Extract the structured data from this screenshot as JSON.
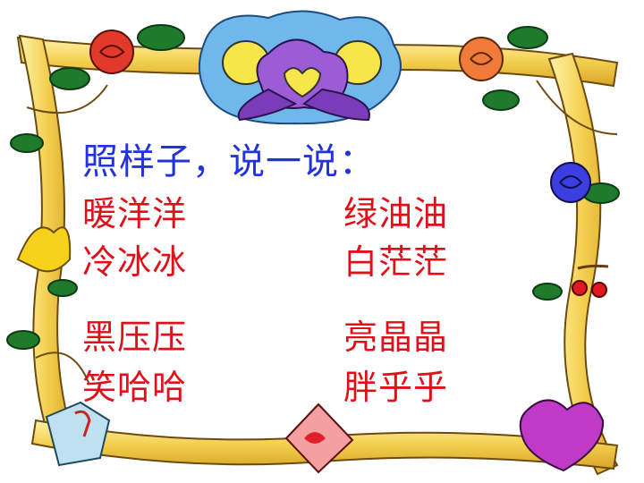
{
  "title": "照样子，说一说：",
  "words": {
    "left": [
      "暖洋洋",
      "冷冰冰",
      "黑压压",
      "笑哈哈"
    ],
    "right": [
      "绿油油",
      "白茫茫",
      "亮晶晶",
      "胖乎乎"
    ]
  },
  "colors": {
    "title": "#2233dd",
    "words": "#e0101a",
    "frame": "#f3cf4e",
    "frame_shadow": "#c9961c"
  },
  "icons": [
    "top-flower-bouquet-icon",
    "red-rose-icon",
    "orange-rose-icon",
    "blue-rose-icon",
    "yellow-lily-icon",
    "cherries-icon",
    "envelope-icon",
    "gift-box-icon",
    "purple-heart-icon",
    "leaf-icon"
  ]
}
